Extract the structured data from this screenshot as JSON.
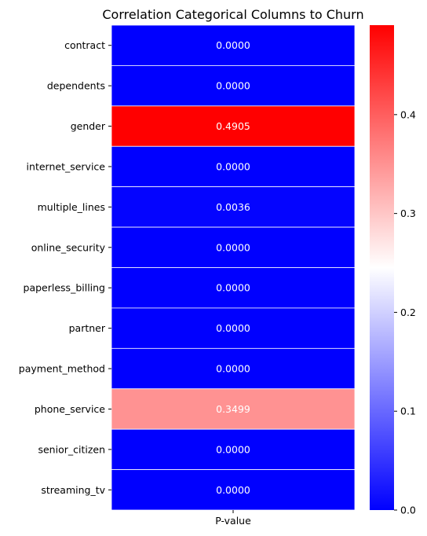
{
  "chart_data": {
    "type": "heatmap",
    "title": "Correlation Categorical Columns to Churn",
    "xlabel": "",
    "ylabel": "",
    "columns": [
      "P-value"
    ],
    "rows": [
      "contract",
      "dependents",
      "gender",
      "internet_service",
      "multiple_lines",
      "online_security",
      "paperless_billing",
      "partner",
      "payment_method",
      "phone_service",
      "senior_citizen",
      "streaming_tv"
    ],
    "values": [
      0.0,
      0.0,
      0.4905,
      0.0,
      0.0036,
      0.0,
      0.0,
      0.0,
      0.0,
      0.3499,
      0.0,
      0.0
    ],
    "annotations": [
      "0.0000",
      "0.0000",
      "0.4905",
      "0.0000",
      "0.0036",
      "0.0000",
      "0.0000",
      "0.0000",
      "0.0000",
      "0.3499",
      "0.0000",
      "0.0000"
    ],
    "colormap": "bwr",
    "colors": {
      "low": "#0000ff",
      "mid": "#ffffff",
      "high": "#ff0000",
      "annotation_text": "#ffffff",
      "annotation_text_light": "#262626"
    },
    "colorbar": {
      "vmin": 0.0,
      "vmax": 0.4905,
      "ticks": [
        0.0,
        0.1,
        0.2,
        0.3,
        0.4
      ],
      "tick_labels": [
        "0.0",
        "0.1",
        "0.2",
        "0.3",
        "0.4"
      ]
    },
    "grid": false,
    "cell_separators": "white"
  }
}
